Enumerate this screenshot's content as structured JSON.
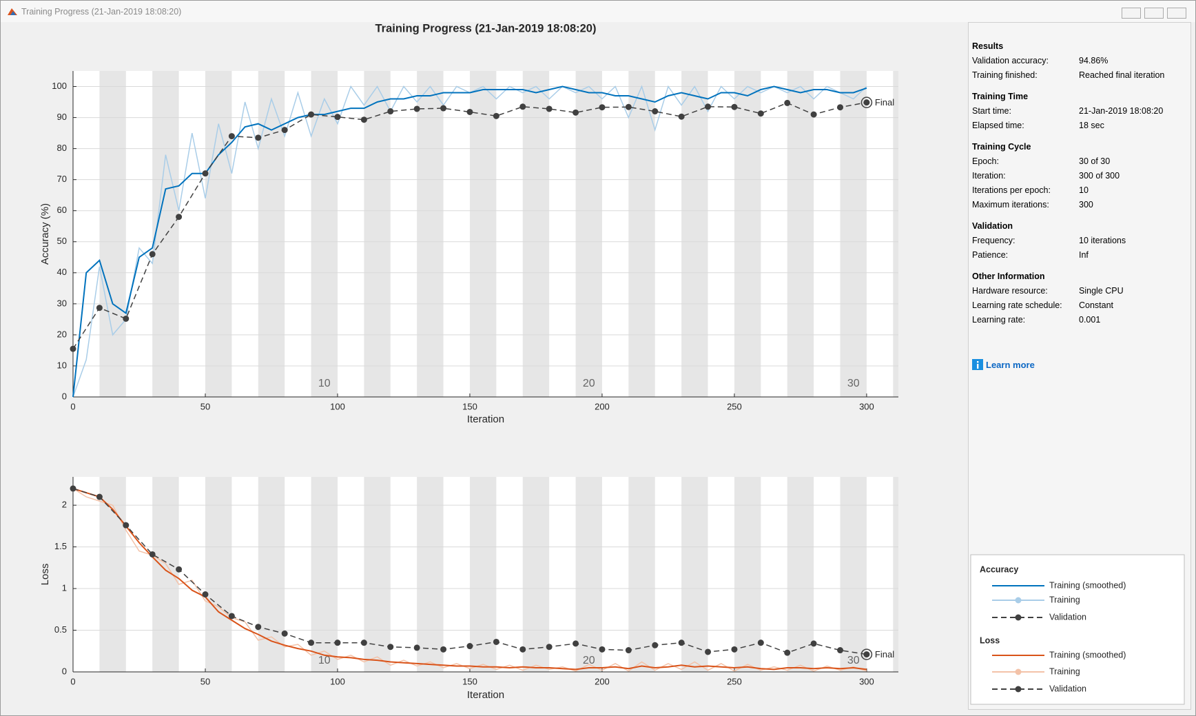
{
  "window": {
    "title": "Training Progress (21-Jan-2019 18:08:20)"
  },
  "chart_data": [
    {
      "type": "line",
      "title": "Training Progress (21-Jan-2019 18:08:20)",
      "xlabel": "Iteration",
      "ylabel": "Accuracy (%)",
      "xlim": [
        0,
        312
      ],
      "ylim": [
        0,
        105
      ],
      "xticks": [
        0,
        50,
        100,
        150,
        200,
        250,
        300
      ],
      "yticks": [
        0,
        10,
        20,
        30,
        40,
        50,
        60,
        70,
        80,
        90,
        100
      ],
      "grid": true,
      "epoch_labels": [
        10,
        20,
        30
      ],
      "legend_title": "Accuracy",
      "annotation": "Final",
      "series": [
        {
          "name": "Training (smoothed)",
          "color": "#0072bd",
          "style": "solid",
          "x": [
            0,
            5,
            10,
            15,
            20,
            25,
            30,
            35,
            40,
            45,
            50,
            55,
            60,
            65,
            70,
            75,
            80,
            85,
            90,
            95,
            100,
            105,
            110,
            115,
            120,
            125,
            130,
            135,
            140,
            145,
            150,
            155,
            160,
            165,
            170,
            175,
            180,
            185,
            190,
            195,
            200,
            205,
            210,
            215,
            220,
            225,
            230,
            235,
            240,
            245,
            250,
            255,
            260,
            265,
            270,
            275,
            280,
            285,
            290,
            295,
            300
          ],
          "values": [
            0,
            40,
            44,
            30,
            27,
            45,
            48,
            67,
            68,
            72,
            72,
            78,
            82,
            87,
            88,
            86,
            88,
            90,
            91,
            91,
            92,
            93,
            93,
            95,
            96,
            96,
            97,
            97,
            98,
            98,
            98,
            99,
            99,
            99,
            99,
            98,
            99,
            100,
            99,
            98,
            98,
            97,
            97,
            96,
            95,
            97,
            98,
            97,
            96,
            98,
            98,
            97,
            99,
            100,
            99,
            98,
            99,
            99,
            98,
            98,
            99.5
          ]
        },
        {
          "name": "Training",
          "color": "#a9cde8",
          "style": "solid",
          "x": [
            0,
            5,
            10,
            15,
            20,
            25,
            30,
            35,
            40,
            45,
            50,
            55,
            60,
            65,
            70,
            75,
            80,
            85,
            90,
            95,
            100,
            105,
            110,
            115,
            120,
            125,
            130,
            135,
            140,
            145,
            150,
            155,
            160,
            165,
            170,
            175,
            180,
            185,
            190,
            195,
            200,
            205,
            210,
            215,
            220,
            225,
            230,
            235,
            240,
            245,
            250,
            255,
            260,
            265,
            270,
            275,
            280,
            285,
            290,
            295,
            300
          ],
          "values": [
            0,
            12,
            42,
            20,
            25,
            48,
            43,
            78,
            60,
            85,
            64,
            88,
            72,
            95,
            80,
            96,
            84,
            98,
            84,
            96,
            88,
            100,
            94,
            100,
            92,
            100,
            95,
            100,
            94,
            100,
            98,
            100,
            96,
            100,
            98,
            100,
            96,
            100,
            98,
            100,
            96,
            100,
            90,
            100,
            86,
            100,
            94,
            100,
            92,
            100,
            96,
            100,
            98,
            100,
            98,
            100,
            96,
            100,
            98,
            96,
            100
          ]
        },
        {
          "name": "Validation",
          "color": "#404040",
          "style": "dashed",
          "x": [
            0,
            10,
            20,
            30,
            40,
            50,
            60,
            70,
            80,
            90,
            100,
            110,
            120,
            130,
            140,
            150,
            160,
            170,
            180,
            190,
            200,
            210,
            220,
            230,
            240,
            250,
            260,
            270,
            280,
            290,
            300
          ],
          "values": [
            15.5,
            28.7,
            25.2,
            46,
            58,
            72,
            84,
            83.5,
            86,
            91,
            90.2,
            89.3,
            92,
            92.8,
            93,
            91.8,
            90.5,
            93.5,
            92.8,
            91.6,
            93.3,
            93.4,
            92,
            90.3,
            93.5,
            93.4,
            91.3,
            94.7,
            91,
            93.3,
            94.86
          ]
        }
      ]
    },
    {
      "type": "line",
      "xlabel": "Iteration",
      "ylabel": "Loss",
      "xlim": [
        0,
        312
      ],
      "ylim": [
        0,
        2.34
      ],
      "xticks": [
        0,
        50,
        100,
        150,
        200,
        250,
        300
      ],
      "yticks": [
        0,
        0.5,
        1,
        1.5,
        2
      ],
      "grid": true,
      "epoch_labels": [
        10,
        20,
        30
      ],
      "legend_title": "Loss",
      "annotation": "Final",
      "series": [
        {
          "name": "Training (smoothed)",
          "color": "#d95319",
          "style": "solid",
          "x": [
            0,
            5,
            10,
            15,
            20,
            25,
            30,
            35,
            40,
            45,
            50,
            55,
            60,
            65,
            70,
            75,
            80,
            85,
            90,
            95,
            100,
            105,
            110,
            115,
            120,
            125,
            130,
            135,
            140,
            145,
            150,
            155,
            160,
            165,
            170,
            175,
            180,
            185,
            190,
            195,
            200,
            205,
            210,
            215,
            220,
            225,
            230,
            235,
            240,
            245,
            250,
            255,
            260,
            265,
            270,
            275,
            280,
            285,
            290,
            295,
            300
          ],
          "values": [
            2.2,
            2.15,
            2.1,
            1.95,
            1.75,
            1.55,
            1.38,
            1.22,
            1.12,
            0.98,
            0.9,
            0.72,
            0.62,
            0.52,
            0.45,
            0.37,
            0.32,
            0.28,
            0.25,
            0.2,
            0.18,
            0.17,
            0.15,
            0.14,
            0.12,
            0.11,
            0.1,
            0.09,
            0.08,
            0.07,
            0.07,
            0.06,
            0.06,
            0.05,
            0.06,
            0.05,
            0.05,
            0.04,
            0.03,
            0.05,
            0.05,
            0.06,
            0.04,
            0.07,
            0.05,
            0.06,
            0.08,
            0.06,
            0.07,
            0.06,
            0.05,
            0.06,
            0.04,
            0.03,
            0.05,
            0.05,
            0.04,
            0.05,
            0.04,
            0.05,
            0.03
          ]
        },
        {
          "name": "Training",
          "color": "#f3c2a8",
          "style": "solid",
          "x": [
            0,
            5,
            10,
            15,
            20,
            25,
            30,
            35,
            40,
            45,
            50,
            55,
            60,
            65,
            70,
            75,
            80,
            85,
            90,
            95,
            100,
            105,
            110,
            115,
            120,
            125,
            130,
            135,
            140,
            145,
            150,
            155,
            160,
            165,
            170,
            175,
            180,
            185,
            190,
            195,
            200,
            205,
            210,
            215,
            220,
            225,
            230,
            235,
            240,
            245,
            250,
            255,
            260,
            265,
            270,
            275,
            280,
            285,
            290,
            295,
            300
          ],
          "values": [
            2.2,
            2.1,
            2.05,
            2.0,
            1.7,
            1.45,
            1.4,
            1.3,
            1.05,
            1.1,
            0.85,
            0.78,
            0.65,
            0.6,
            0.38,
            0.42,
            0.3,
            0.33,
            0.2,
            0.25,
            0.15,
            0.2,
            0.12,
            0.18,
            0.08,
            0.14,
            0.07,
            0.12,
            0.05,
            0.1,
            0.04,
            0.09,
            0.03,
            0.08,
            0.02,
            0.08,
            0.03,
            0.06,
            0.01,
            0.09,
            0.02,
            0.1,
            0.01,
            0.12,
            0.02,
            0.1,
            0.03,
            0.12,
            0.02,
            0.1,
            0.01,
            0.09,
            0.02,
            0.06,
            0.02,
            0.08,
            0.01,
            0.07,
            0.02,
            0.06,
            0.01
          ]
        },
        {
          "name": "Validation",
          "color": "#404040",
          "style": "dashed",
          "x": [
            0,
            10,
            20,
            30,
            40,
            50,
            60,
            70,
            80,
            90,
            100,
            110,
            120,
            130,
            140,
            150,
            160,
            170,
            180,
            190,
            200,
            210,
            220,
            230,
            240,
            250,
            260,
            270,
            280,
            290,
            300
          ],
          "values": [
            2.2,
            2.1,
            1.76,
            1.41,
            1.23,
            0.93,
            0.67,
            0.54,
            0.46,
            0.35,
            0.35,
            0.35,
            0.3,
            0.29,
            0.27,
            0.31,
            0.36,
            0.27,
            0.3,
            0.34,
            0.27,
            0.26,
            0.32,
            0.35,
            0.24,
            0.27,
            0.35,
            0.23,
            0.34,
            0.26,
            0.21
          ]
        }
      ]
    }
  ],
  "info": {
    "sections": [
      {
        "title": "Results",
        "rows": [
          [
            "Validation accuracy:",
            "94.86%"
          ],
          [
            "Training finished:",
            "Reached final iteration"
          ]
        ]
      },
      {
        "title": "Training Time",
        "rows": [
          [
            "Start time:",
            "21-Jan-2019 18:08:20"
          ],
          [
            "Elapsed time:",
            "18 sec"
          ]
        ]
      },
      {
        "title": "Training Cycle",
        "rows": [
          [
            "Epoch:",
            "30 of 30"
          ],
          [
            "Iteration:",
            "300 of 300"
          ],
          [
            "Iterations per epoch:",
            "10"
          ],
          [
            "Maximum iterations:",
            "300"
          ]
        ]
      },
      {
        "title": "Validation",
        "rows": [
          [
            "Frequency:",
            "10 iterations"
          ],
          [
            "Patience:",
            "Inf"
          ]
        ]
      },
      {
        "title": "Other Information",
        "rows": [
          [
            "Hardware resource:",
            "Single CPU"
          ],
          [
            "Learning rate schedule:",
            "Constant"
          ],
          [
            "Learning rate:",
            "0.001"
          ]
        ]
      }
    ],
    "learn_more": "Learn more"
  }
}
